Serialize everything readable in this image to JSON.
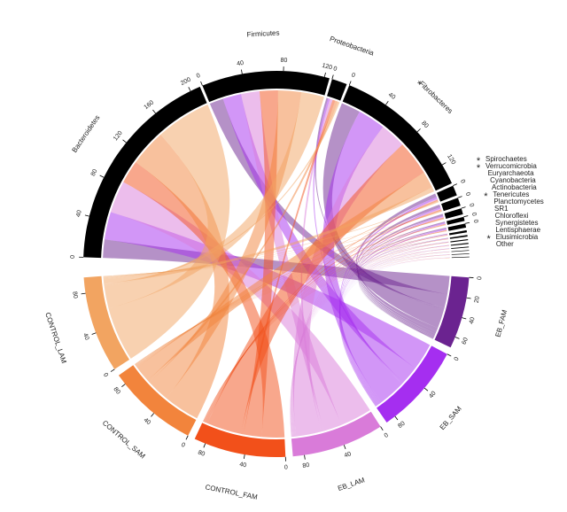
{
  "chart_data": {
    "type": "chord",
    "marker": "*",
    "sectors": [
      {
        "name": "Bacteroidetes",
        "color": "#000000",
        "significant": false,
        "ticks": [
          0,
          40,
          80,
          120,
          160,
          200
        ],
        "links": [
          20,
          30,
          35,
          25,
          40,
          60
        ]
      },
      {
        "name": "Firmicutes",
        "color": "#000000",
        "significant": false,
        "ticks": [
          0,
          40,
          80,
          120
        ],
        "links": [
          15,
          20,
          20,
          20,
          25,
          25
        ]
      },
      {
        "name": "Proteobacteria",
        "color": "#000000",
        "significant": false,
        "ticks": [
          0
        ],
        "links": [
          2,
          2,
          3,
          3,
          3,
          2
        ]
      },
      {
        "name": "Fibrobacteres",
        "color": "#000000",
        "significant": true,
        "ticks": [
          0,
          40,
          80,
          120
        ],
        "links": [
          21,
          30,
          28,
          38,
          18,
          5
        ]
      },
      {
        "name": "Spirochaetes",
        "color": "#000000",
        "significant": true,
        "ticks": [
          0
        ],
        "links": [
          4,
          2,
          1,
          1,
          1,
          1
        ]
      },
      {
        "name": "Verrucomicrobia",
        "color": "#000000",
        "significant": true,
        "ticks": [
          0
        ],
        "links": [
          3,
          1.5,
          1,
          1,
          1,
          0.5
        ]
      },
      {
        "name": "Euryarchaeota",
        "color": "#000000",
        "significant": false,
        "ticks": [
          0
        ],
        "links": [
          2,
          1,
          1,
          1,
          0.5,
          0.5
        ]
      },
      {
        "name": "Cyanobacteria",
        "color": "#000000",
        "significant": false,
        "ticks": [
          0
        ],
        "links": [
          1.2,
          1,
          0.5,
          0.5,
          0.5,
          0.3
        ]
      },
      {
        "name": "Actinobacteria",
        "color": "#000000",
        "significant": false,
        "ticks": [
          0
        ],
        "links": [
          1.2,
          1,
          0.5,
          0.5,
          0.5,
          0.3
        ]
      },
      {
        "name": "Tenericutes",
        "color": "#000000",
        "significant": true,
        "ticks": [],
        "links": [
          0.5,
          0.4,
          0.3,
          0.3,
          0.3,
          0.2
        ]
      },
      {
        "name": "Planctomycetes",
        "color": "#000000",
        "significant": false,
        "ticks": [],
        "links": [
          0.4,
          0.3,
          0.2,
          0.2,
          0.2,
          0.2
        ]
      },
      {
        "name": "SR1",
        "color": "#000000",
        "significant": false,
        "ticks": [],
        "links": [
          0.2,
          0.2,
          0.2,
          0.2,
          0.1,
          0.1
        ]
      },
      {
        "name": "Chloroflexi",
        "color": "#000000",
        "significant": false,
        "ticks": [],
        "links": [
          0.2,
          0.2,
          0.2,
          0.2,
          0.1,
          0.1
        ]
      },
      {
        "name": "Synergistetes",
        "color": "#000000",
        "significant": false,
        "ticks": [],
        "links": [
          0.2,
          0.2,
          0.1,
          0.1,
          0.1,
          0.1
        ]
      },
      {
        "name": "Lentisphaerae",
        "color": "#000000",
        "significant": false,
        "ticks": [],
        "links": [
          0.1,
          0.1,
          0.1,
          0.1,
          0.1,
          0.1
        ]
      },
      {
        "name": "Elusimicrobia",
        "color": "#000000",
        "significant": true,
        "ticks": [],
        "links": [
          0.1,
          0.1,
          0.1,
          0.1,
          0.1,
          0.1
        ]
      },
      {
        "name": "Other",
        "color": "#000000",
        "significant": false,
        "ticks": [],
        "links": [
          0.05,
          0.05,
          0.1,
          0.1,
          0.1,
          0.1
        ]
      }
    ],
    "groups": [
      {
        "name": "EB_FAM",
        "color": "#6b2390",
        "ticks": [
          0,
          20,
          40,
          60
        ]
      },
      {
        "name": "EB_SAM",
        "color": "#a52ef0",
        "ticks": [
          0,
          40,
          80
        ]
      },
      {
        "name": "EB_LAM",
        "color": "#d97bd9",
        "ticks": [
          0,
          40,
          80
        ]
      },
      {
        "name": "CONTROL_FAM",
        "color": "#f2501a",
        "ticks": [
          0,
          40,
          80
        ]
      },
      {
        "name": "CONTROL_SAM",
        "color": "#f2843c",
        "ticks": [
          0,
          40,
          80
        ]
      },
      {
        "name": "CONTROL_LAM",
        "color": "#f2a461",
        "ticks": [
          0,
          40,
          80
        ]
      }
    ]
  }
}
